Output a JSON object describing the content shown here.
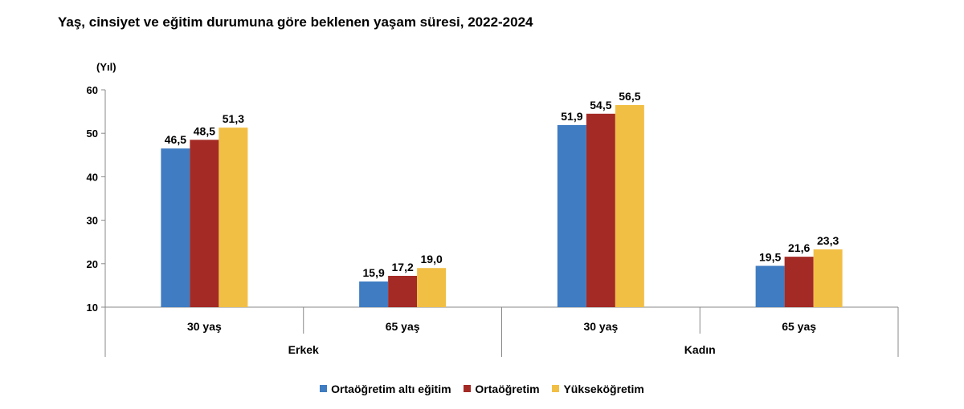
{
  "title": "Yaş, cinsiyet ve eğitim durumuna göre beklenen yaşam süresi, 2022-2024",
  "chart_data": {
    "type": "bar",
    "unit_label": "(Yıl)",
    "ylim": [
      10,
      60
    ],
    "yticks": [
      "10",
      "20",
      "30",
      "40",
      "50",
      "60"
    ],
    "groups": [
      {
        "name": "Erkek",
        "categories": [
          "30 yaş",
          "65 yaş"
        ]
      },
      {
        "name": "Kadın",
        "categories": [
          "30 yaş",
          "65 yaş"
        ]
      }
    ],
    "series": [
      {
        "name": "Ortaöğretim altı eğitim",
        "color": "#3f7cc2",
        "values": [
          46.5,
          15.9,
          51.9,
          19.5
        ],
        "labels": [
          "46,5",
          "15,9",
          "51,9",
          "19,5"
        ]
      },
      {
        "name": "Ortaöğretim",
        "color": "#a42a25",
        "values": [
          48.5,
          17.2,
          54.5,
          21.6
        ],
        "labels": [
          "48,5",
          "17,2",
          "54,5",
          "21,6"
        ]
      },
      {
        "name": "Yükseköğretim",
        "color": "#f2bf45",
        "values": [
          51.3,
          19.0,
          56.5,
          23.3
        ],
        "labels": [
          "51,3",
          "19,0",
          "56,5",
          "23,3"
        ]
      }
    ],
    "legend_position": "bottom",
    "grid": false
  }
}
